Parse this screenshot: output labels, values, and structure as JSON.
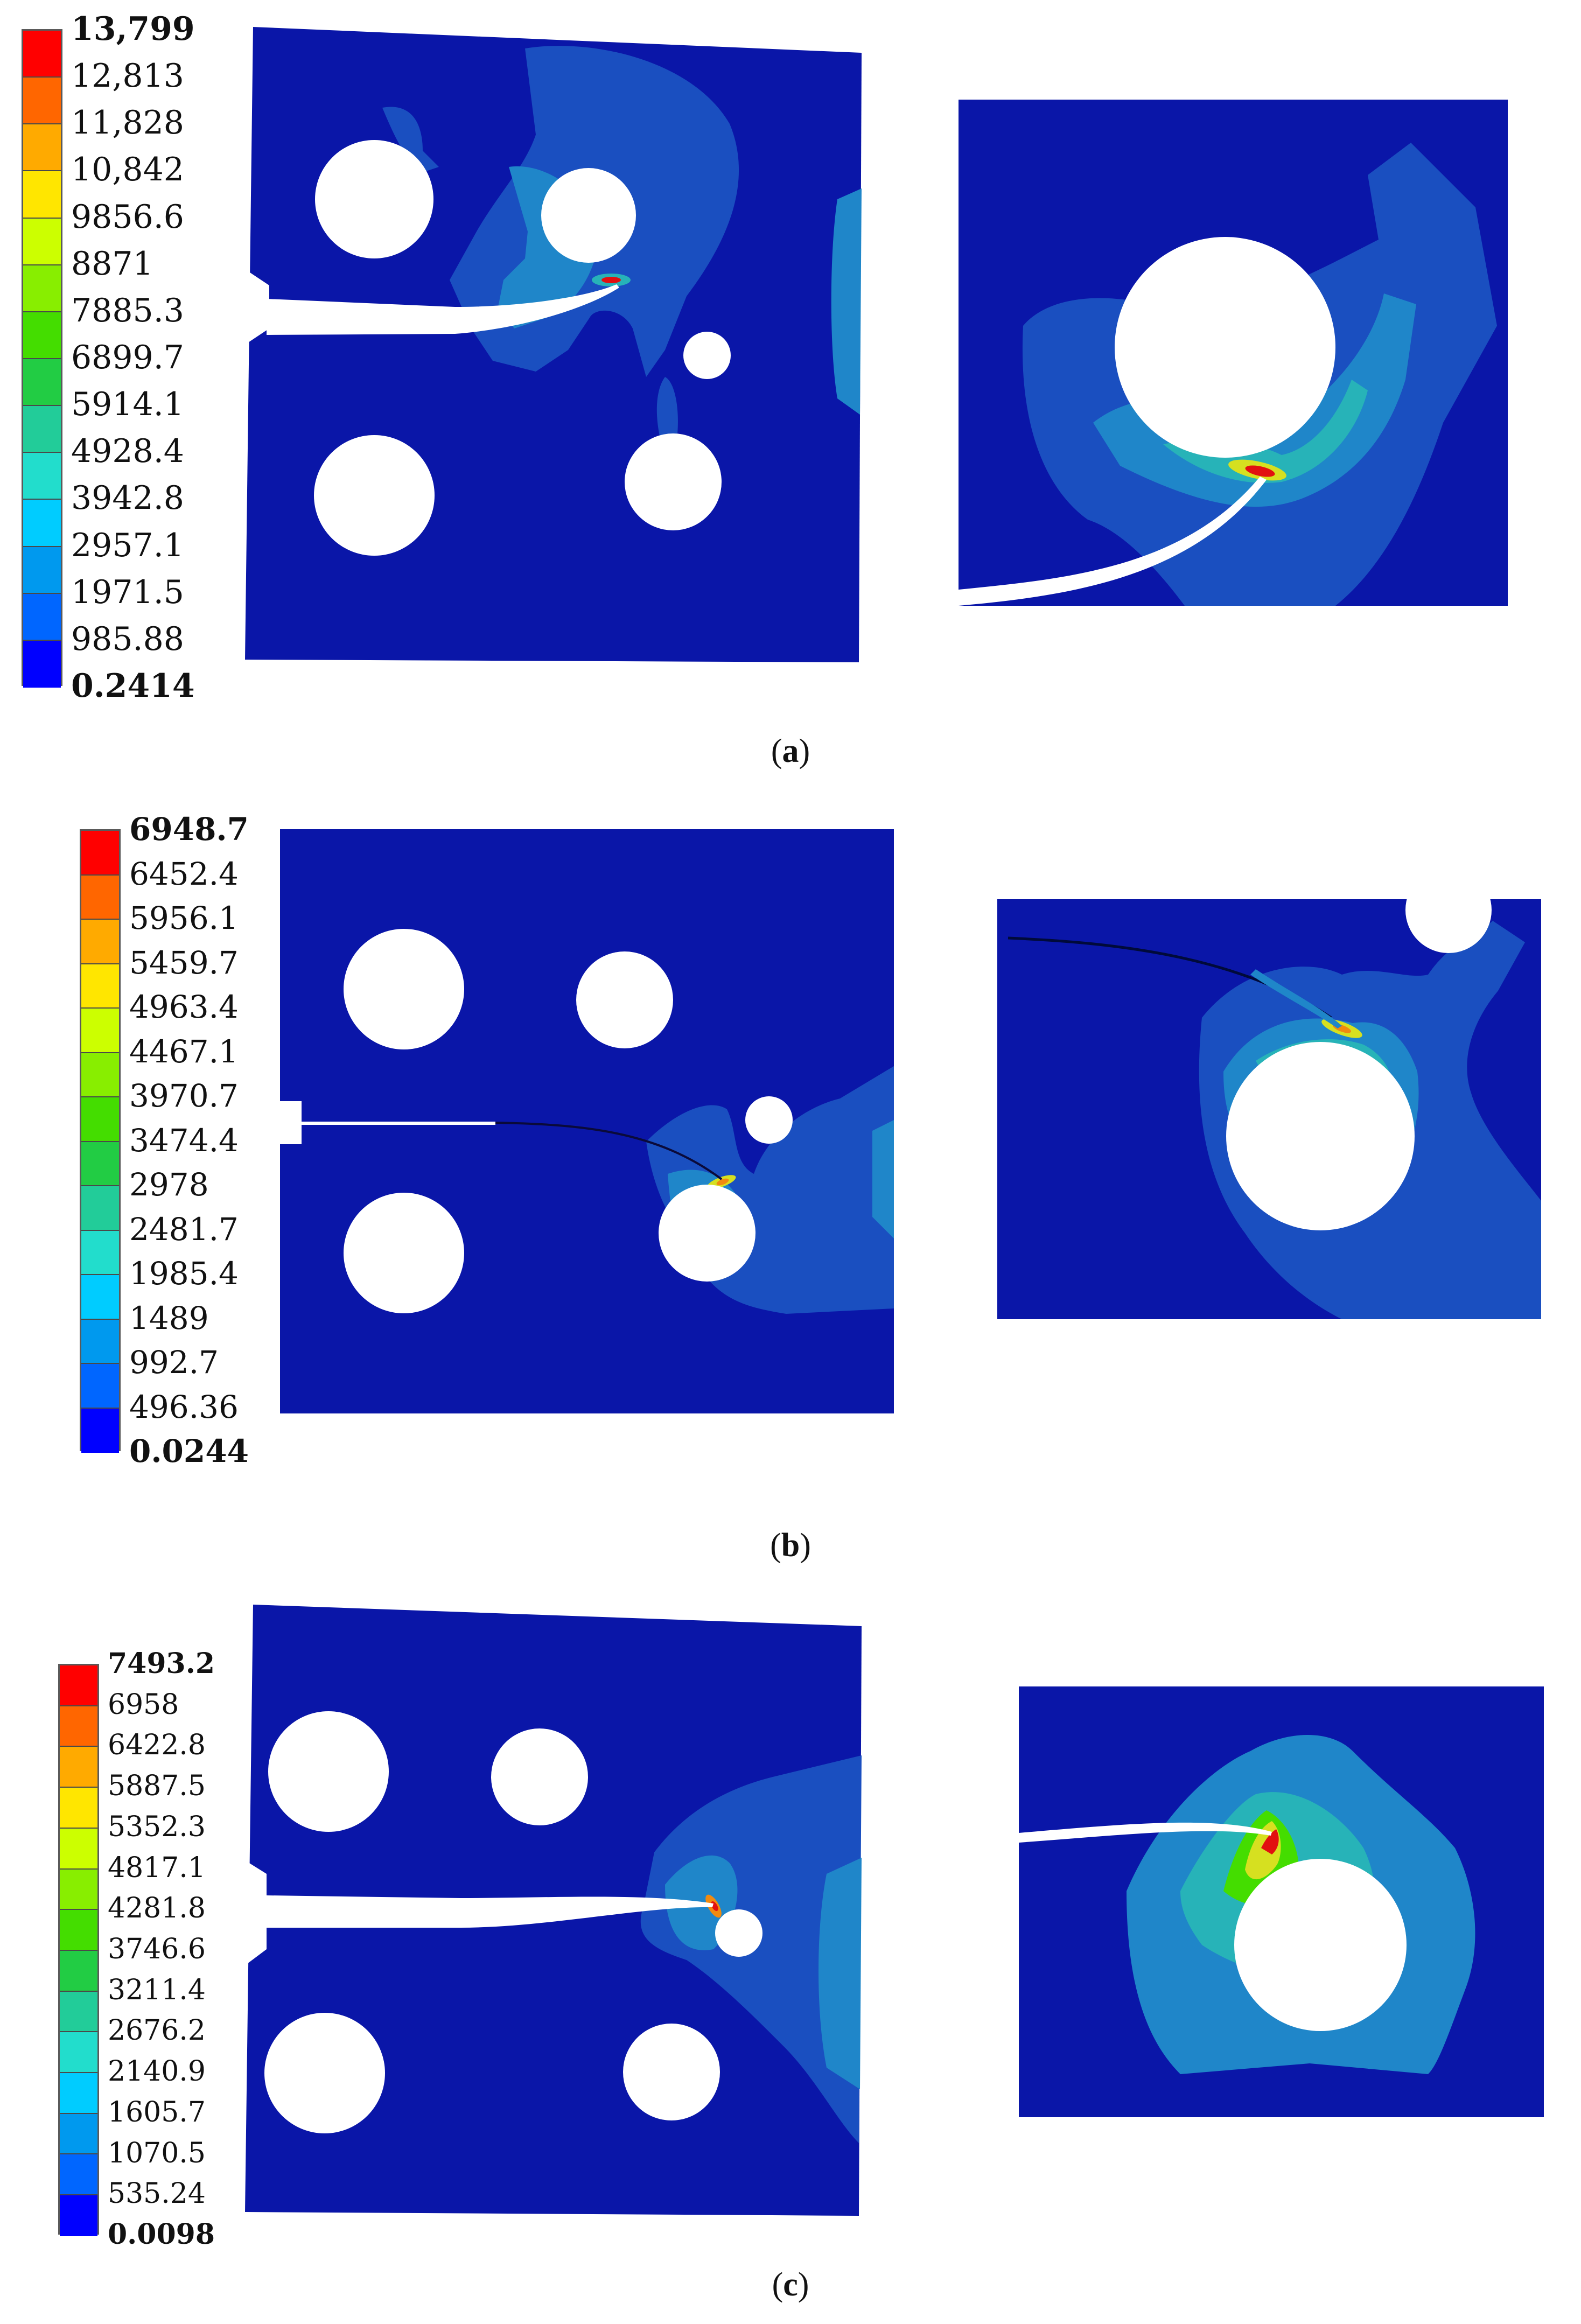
{
  "panels": [
    {
      "id": "a",
      "caption_letter": "a",
      "legend": {
        "levels": [
          "13,799",
          "12,813",
          "11,828",
          "10,842",
          "9856.6",
          "8871",
          "7885.3",
          "6899.7",
          "5914.1",
          "4928.4",
          "3942.8",
          "2957.1",
          "1971.5",
          "985.88",
          "0.2414"
        ],
        "colors": [
          "#ff0000",
          "#ff6600",
          "#ffaa00",
          "#ffe600",
          "#ccff00",
          "#88ee00",
          "#44dd00",
          "#22cc44",
          "#22cc99",
          "#22ddcc",
          "#00ccff",
          "#0099ee",
          "#0066ff",
          "#0000ff"
        ]
      }
    },
    {
      "id": "b",
      "caption_letter": "b",
      "legend": {
        "levels": [
          "6948.7",
          "6452.4",
          "5956.1",
          "5459.7",
          "4963.4",
          "4467.1",
          "3970.7",
          "3474.4",
          "2978",
          "2481.7",
          "1985.4",
          "1489",
          "992.7",
          "496.36",
          "0.0244"
        ],
        "colors": [
          "#ff0000",
          "#ff6600",
          "#ffaa00",
          "#ffe600",
          "#ccff00",
          "#88ee00",
          "#44dd00",
          "#22cc44",
          "#22cc99",
          "#22ddcc",
          "#00ccff",
          "#0099ee",
          "#0066ff",
          "#0000ff"
        ]
      }
    },
    {
      "id": "c",
      "caption_letter": "c",
      "legend": {
        "levels": [
          "7493.2",
          "6958",
          "6422.8",
          "5887.5",
          "5352.3",
          "4817.1",
          "4281.8",
          "3746.6",
          "3211.4",
          "2676.2",
          "2140.9",
          "1605.7",
          "1070.5",
          "535.24",
          "0.0098"
        ],
        "colors": [
          "#ff0000",
          "#ff6600",
          "#ffaa00",
          "#ffe600",
          "#ccff00",
          "#88ee00",
          "#44dd00",
          "#22cc44",
          "#22cc99",
          "#22ddcc",
          "#00ccff",
          "#0099ee",
          "#0066ff",
          "#0000ff"
        ]
      }
    }
  ],
  "colors": {
    "plate_background": "#0a16a8",
    "contour_low": "#1a4fc0",
    "contour_mid": "#1f86c9",
    "contour_high": "#27b3b8",
    "hotspot_yellow": "#d6e020",
    "hotspot_orange": "#f08a10",
    "hotspot_red": "#e21010",
    "hole": "#ffffff"
  }
}
